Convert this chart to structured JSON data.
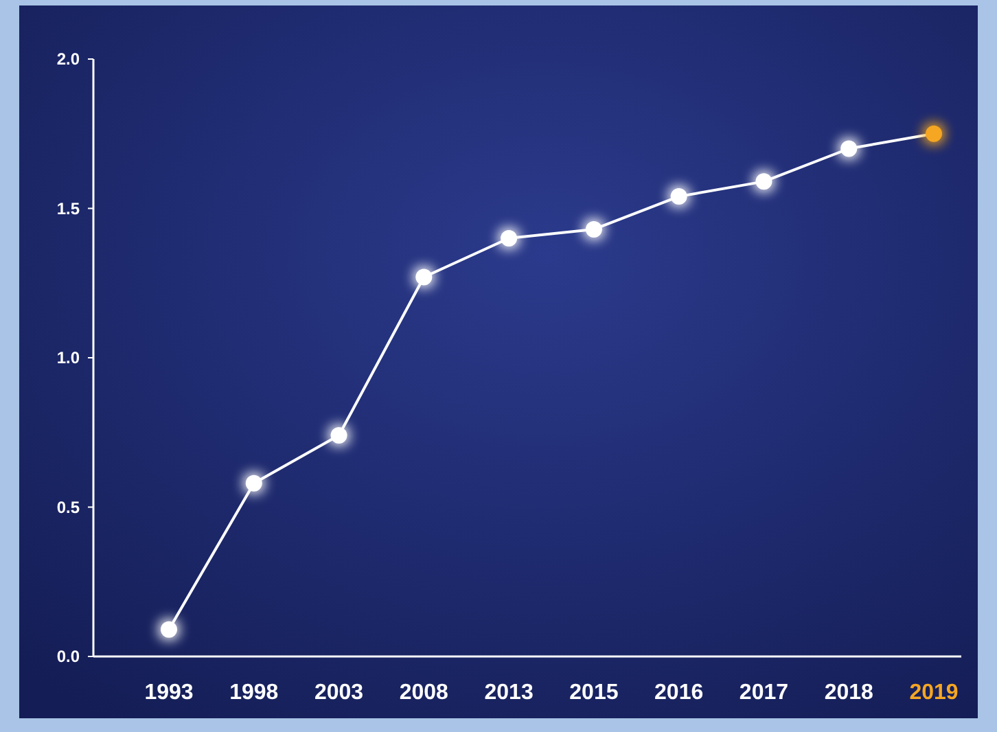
{
  "chart_data": {
    "type": "line",
    "categories": [
      "1993",
      "1998",
      "2003",
      "2008",
      "2013",
      "2015",
      "2016",
      "2017",
      "2018",
      "2019"
    ],
    "series": [
      {
        "color": "#ffffff",
        "colors": [
          "#ffffff",
          "#ffffff",
          "#ffffff",
          "#ffffff",
          "#ffffff",
          "#ffffff",
          "#ffffff",
          "#ffffff",
          "#ffffff",
          "#f5a623"
        ],
        "values": [
          0.09,
          0.58,
          0.74,
          1.27,
          1.4,
          1.43,
          1.54,
          1.59,
          1.7,
          1.75
        ]
      }
    ],
    "ylim": [
      0,
      2
    ],
    "yticks": [
      {
        "value": 0,
        "label": "0.0"
      },
      {
        "value": 0.5,
        "label": "0.5"
      },
      {
        "value": 1,
        "label": "1.0"
      },
      {
        "value": 1.5,
        "label": "1.5"
      },
      {
        "value": 2,
        "label": "2.0"
      }
    ],
    "grid": false,
    "marker": "circle",
    "line_style": "solid"
  }
}
